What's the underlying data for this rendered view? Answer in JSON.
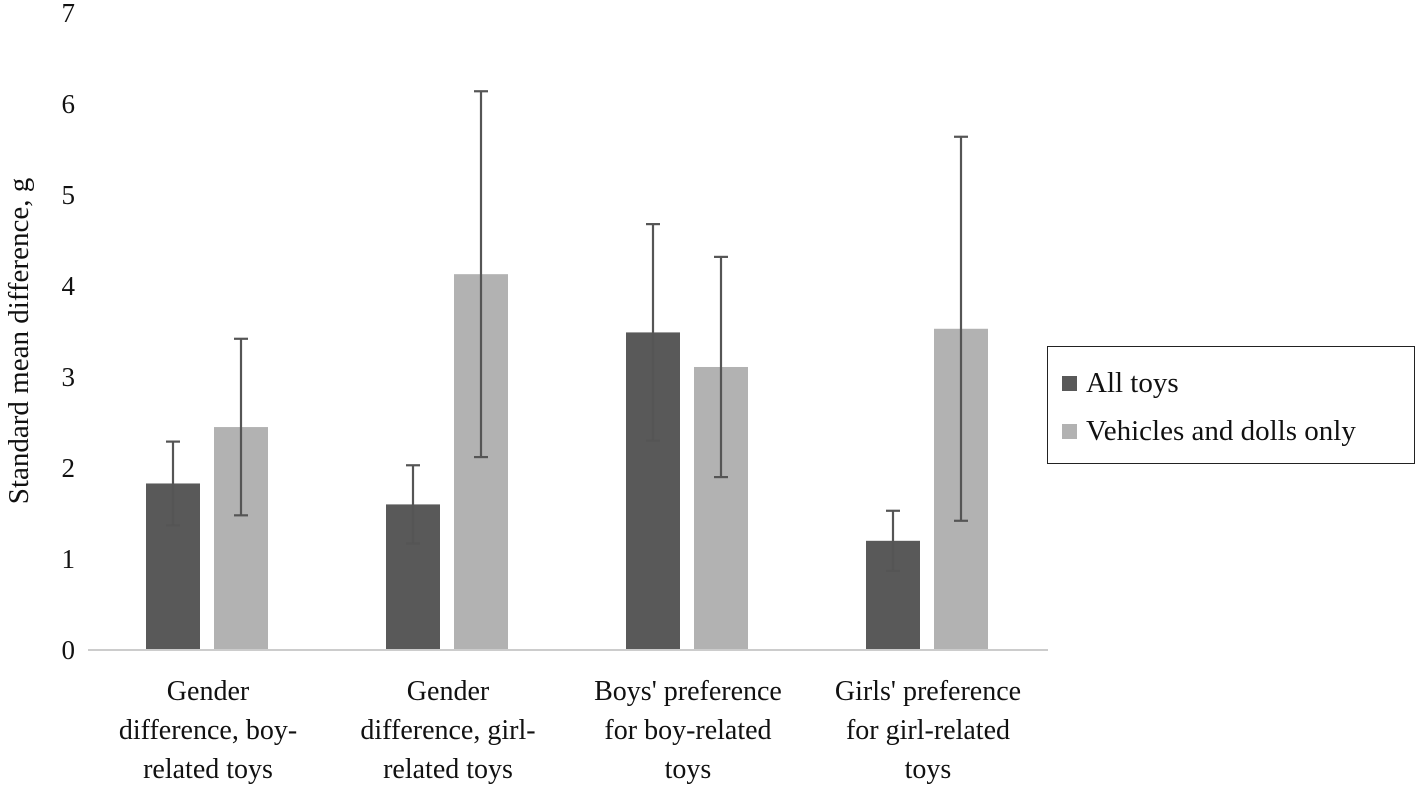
{
  "chart_data": {
    "type": "bar",
    "ylabel": "Standard mean difference, g",
    "ylim": [
      0,
      7
    ],
    "yticks": [
      "0",
      "1",
      "2",
      "3",
      "4",
      "5",
      "6",
      "7"
    ],
    "categories": [
      [
        "Gender",
        "difference, boy-",
        "related toys"
      ],
      [
        "Gender",
        "difference, girl-",
        "related toys"
      ],
      [
        "Boys' preference",
        "for boy-related",
        "toys"
      ],
      [
        "Girls' preference",
        "for girl-related",
        "toys"
      ]
    ],
    "series": [
      {
        "name": "All toys",
        "color": "#595959",
        "values": [
          1.83,
          1.6,
          3.49,
          1.2
        ],
        "err_low": [
          1.37,
          1.17,
          2.3,
          0.87
        ],
        "err_high": [
          2.29,
          2.03,
          4.68,
          1.53
        ]
      },
      {
        "name": "Vehicles and dolls only",
        "color": "#b2b2b2",
        "values": [
          2.45,
          4.13,
          3.11,
          3.53
        ],
        "err_low": [
          1.48,
          2.12,
          1.9,
          1.42
        ],
        "err_high": [
          3.42,
          6.14,
          4.32,
          5.64
        ]
      }
    ],
    "legend_position": "right",
    "grid": false
  }
}
